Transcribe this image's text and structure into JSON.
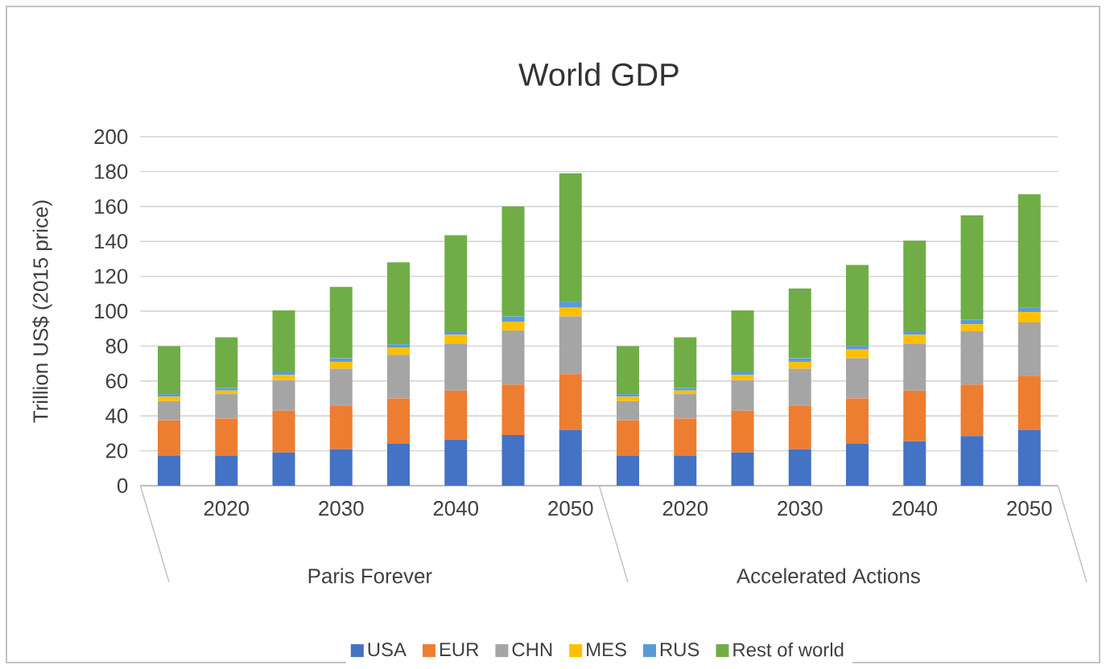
{
  "chart_data": {
    "type": "bar",
    "stacked": true,
    "title": "World GDP",
    "ylabel": "Trillion US$ (2015 price)",
    "categories": [
      null,
      "2020",
      null,
      "2030",
      null,
      "2040",
      null,
      "2050",
      null,
      "2020",
      null,
      "2030",
      null,
      "2040",
      null,
      "2050"
    ],
    "series": [
      {
        "name": "USA",
        "color": "#4472c4",
        "values": [
          17,
          17,
          19,
          21,
          24,
          26.5,
          29,
          32,
          17,
          17,
          19,
          21,
          24,
          25.5,
          28.5,
          32
        ]
      },
      {
        "name": "EUR",
        "color": "#ed7d31",
        "values": [
          20.5,
          21.5,
          24,
          25,
          26,
          28,
          29,
          32,
          20.5,
          21.5,
          24,
          25,
          26,
          29,
          29.5,
          31
        ]
      },
      {
        "name": "CHN",
        "color": "#a5a5a5",
        "values": [
          11,
          14,
          17.5,
          21,
          25,
          27,
          31,
          33,
          11,
          14,
          17.5,
          21,
          23,
          27,
          30.5,
          30.5
        ]
      },
      {
        "name": "MES",
        "color": "#ffc000",
        "values": [
          2.5,
          2,
          3,
          4,
          4,
          5,
          5,
          5,
          2.5,
          2,
          3,
          4,
          5,
          5,
          4,
          6
        ]
      },
      {
        "name": "RUS",
        "color": "#5b9bd5",
        "values": [
          1.5,
          1.5,
          2,
          2,
          2,
          2,
          3,
          3.5,
          1.5,
          1.5,
          2,
          2,
          2,
          2,
          2.5,
          2.5
        ]
      },
      {
        "name": "Rest of world",
        "color": "#70ad47",
        "values": [
          27.5,
          29,
          35,
          41,
          47,
          55,
          63,
          73.5,
          27.5,
          29,
          35,
          40,
          46.5,
          52,
          60,
          65
        ]
      }
    ],
    "annotations": [
      "Paris Forever",
      "Accelerated Actions"
    ],
    "ylim": [
      0,
      200
    ],
    "yticks": [
      0,
      20,
      40,
      60,
      80,
      100,
      120,
      140,
      160,
      180,
      200
    ],
    "grid": "y",
    "legend": "bottom"
  }
}
